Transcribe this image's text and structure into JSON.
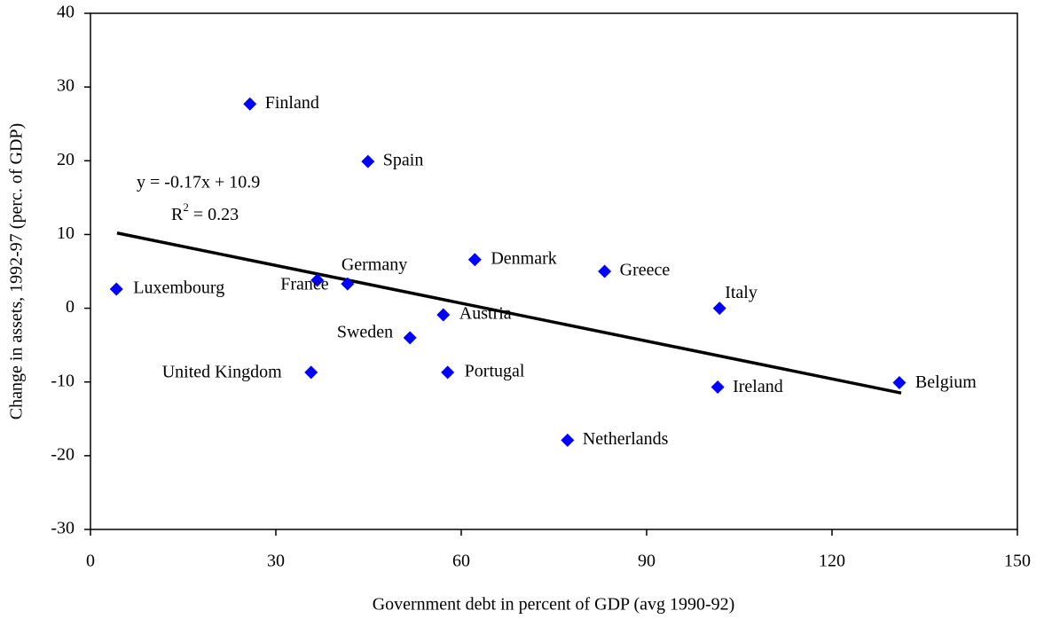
{
  "chart_data": {
    "type": "scatter",
    "xlabel": "Government debt in percent of GDP (avg 1990-92)",
    "ylabel": "Change in assets, 1992-97 (perc. of GDP)",
    "labels": [
      "Finland",
      "Spain",
      "Luxembourg",
      "France",
      "Germany",
      "Denmark",
      "Greece",
      "Italy",
      "Austria",
      "Sweden",
      "United Kingdom",
      "Portugal",
      "Ireland",
      "Belgium",
      "Netherlands"
    ],
    "x": [
      25.8,
      44.9,
      4.2,
      36.7,
      41.6,
      62.2,
      83.2,
      101.8,
      57.1,
      51.7,
      35.7,
      57.8,
      101.5,
      130.9,
      77.2
    ],
    "y": [
      27.7,
      19.9,
      2.6,
      3.8,
      3.3,
      6.6,
      5.0,
      0,
      -0.9,
      -4.0,
      -8.7,
      -8.7,
      -10.7,
      -10.1,
      -17.9
    ],
    "color": "#0000ff",
    "trendline": {
      "x": [
        4.3,
        131.2
      ],
      "y": [
        10.2,
        -11.5
      ],
      "color": "#000000"
    },
    "equation": "y = -0.17x + 10.9",
    "r_squared_parts": [
      "R",
      "2",
      " = 0.23"
    ],
    "xlim": [
      0,
      150
    ],
    "xticks": [
      0,
      30,
      60,
      90,
      120,
      150
    ],
    "ylim": [
      -30,
      40
    ],
    "yticks": [
      -30,
      -20,
      -10,
      0,
      10,
      20,
      30,
      40
    ]
  }
}
